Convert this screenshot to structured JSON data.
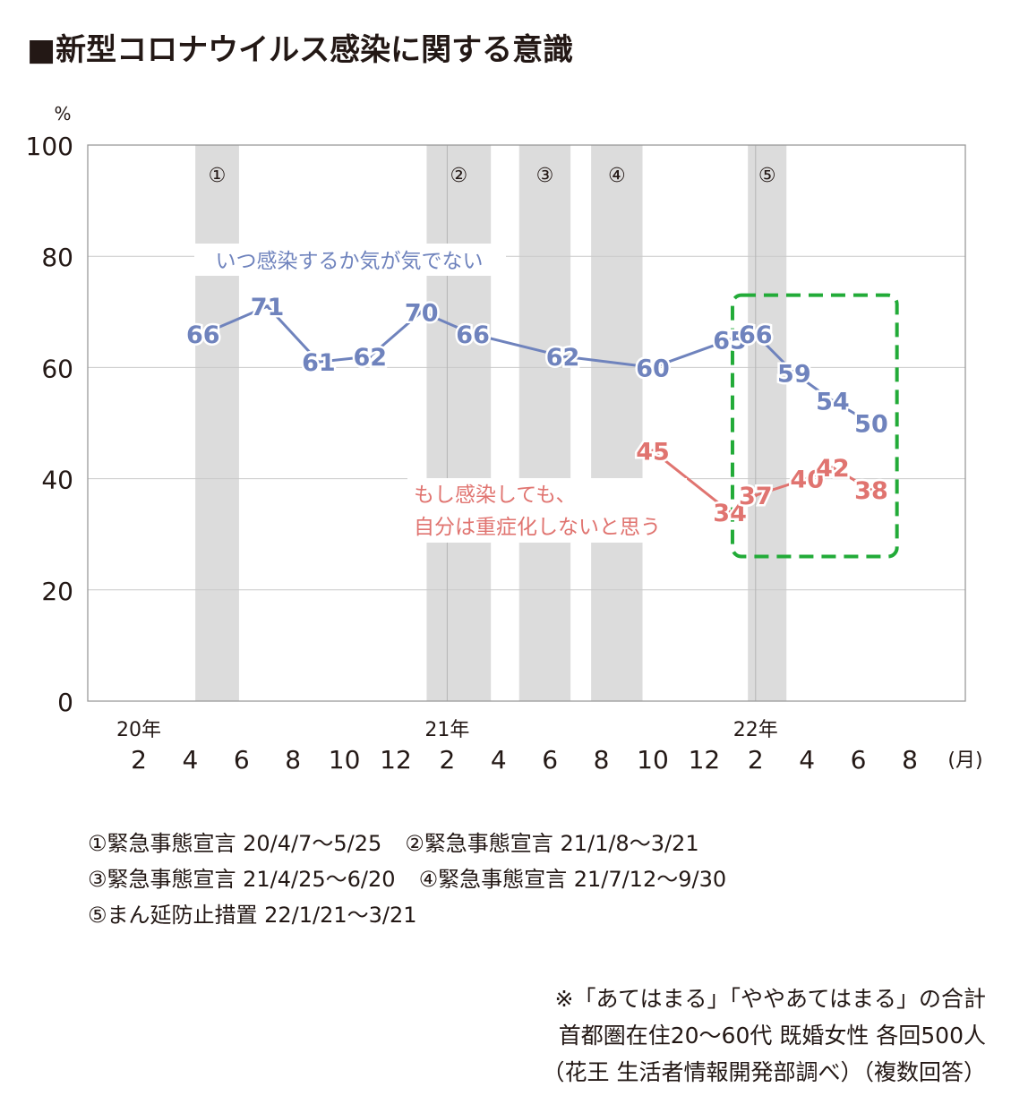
{
  "title": "■新型コロナウイルス感染に関する意識",
  "chart_data": {
    "type": "line",
    "y_unit": "%",
    "ylim": [
      0,
      100
    ],
    "y_ticks": [
      0,
      20,
      40,
      60,
      80,
      100
    ],
    "x_unit": "(月)",
    "x_ticks": [
      {
        "m": 2,
        "label": "2",
        "year": "20年"
      },
      {
        "m": 4,
        "label": "4"
      },
      {
        "m": 6,
        "label": "6"
      },
      {
        "m": 8,
        "label": "8"
      },
      {
        "m": 10,
        "label": "10"
      },
      {
        "m": 12,
        "label": "12"
      },
      {
        "m": 14,
        "label": "2",
        "year": "21年"
      },
      {
        "m": 16,
        "label": "4"
      },
      {
        "m": 18,
        "label": "6"
      },
      {
        "m": 20,
        "label": "8"
      },
      {
        "m": 22,
        "label": "10"
      },
      {
        "m": 24,
        "label": "12"
      },
      {
        "m": 26,
        "label": "2",
        "year": "22年"
      },
      {
        "m": 28,
        "label": "4"
      },
      {
        "m": 30,
        "label": "6"
      },
      {
        "m": 32,
        "label": "8"
      }
    ],
    "grid": true,
    "shaded_periods": [
      {
        "label": "①",
        "from": 4.2,
        "to": 5.9
      },
      {
        "label": "②",
        "from": 13.2,
        "to": 15.7
      },
      {
        "label": "③",
        "from": 16.8,
        "to": 18.8
      },
      {
        "label": "④",
        "from": 19.6,
        "to": 21.6
      },
      {
        "label": "⑤",
        "from": 25.7,
        "to": 27.2
      }
    ],
    "series": [
      {
        "name": "いつ感染するか気が気でない",
        "color": "#6f83bd",
        "x": [
          4.5,
          7,
          9,
          11,
          13,
          15,
          18.5,
          22,
          25,
          26,
          27.5,
          29,
          30.5
        ],
        "values": [
          66,
          71,
          61,
          62,
          70,
          66,
          62,
          60,
          65,
          66,
          59,
          54,
          50
        ]
      },
      {
        "name": "もし感染しても、自分は重症化しないと思う",
        "name_lines": [
          "もし感染しても、",
          "自分は重症化しないと思う"
        ],
        "color": "#e07470",
        "x": [
          22,
          25,
          26,
          28,
          29,
          30.5
        ],
        "values": [
          45,
          34,
          37,
          40,
          42,
          38
        ]
      }
    ],
    "highlight_box": {
      "color": "#22ab38",
      "x_from": 25.1,
      "x_to": 31.5,
      "y_from": 26,
      "y_to": 73
    }
  },
  "notes": [
    [
      "①緊急事態宣言 20/4/7〜5/25",
      "②緊急事態宣言 21/1/8〜3/21"
    ],
    [
      "③緊急事態宣言 21/4/25〜6/20",
      "④緊急事態宣言 21/7/12〜9/30"
    ],
    [
      "⑤まん延防止措置 22/1/21〜3/21"
    ]
  ],
  "source": [
    "※「あてはまる」「ややあてはまる」の合計",
    "首都圏在住20〜60代 既婚女性 各回500人",
    "（花王 生活者情報開発部調べ）（複数回答）"
  ]
}
